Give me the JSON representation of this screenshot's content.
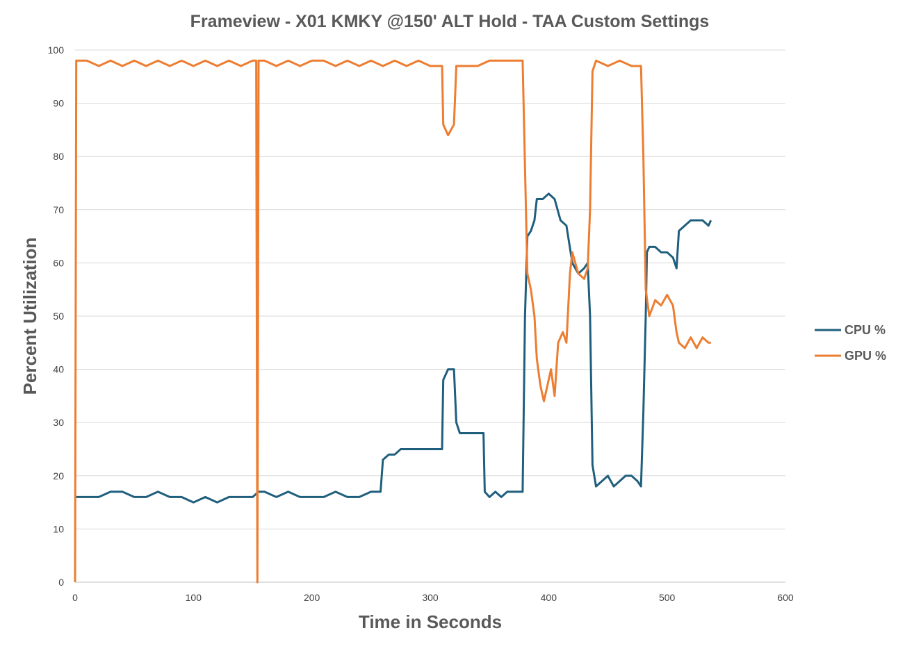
{
  "chart_data": {
    "type": "line",
    "title": "Frameview - X01 KMKY @150' ALT Hold - TAA Custom Settings",
    "xlabel": "Time in Seconds",
    "ylabel": "Percent Utilization",
    "xlim": [
      0,
      600
    ],
    "ylim": [
      0,
      100
    ],
    "x_ticks": [
      "0",
      "100",
      "200",
      "300",
      "400",
      "500",
      "600"
    ],
    "y_ticks": [
      "0",
      "10",
      "20",
      "30",
      "40",
      "50",
      "60",
      "70",
      "80",
      "90",
      "100"
    ],
    "grid": true,
    "legend_position": "right",
    "series": [
      {
        "name": "CPU %",
        "color": "#1f5f7d",
        "points": [
          [
            0,
            16
          ],
          [
            10,
            16
          ],
          [
            20,
            16
          ],
          [
            30,
            17
          ],
          [
            40,
            17
          ],
          [
            50,
            16
          ],
          [
            60,
            16
          ],
          [
            70,
            17
          ],
          [
            80,
            16
          ],
          [
            90,
            16
          ],
          [
            100,
            15
          ],
          [
            110,
            16
          ],
          [
            120,
            15
          ],
          [
            130,
            16
          ],
          [
            140,
            16
          ],
          [
            150,
            16
          ],
          [
            155,
            17
          ],
          [
            160,
            17
          ],
          [
            170,
            16
          ],
          [
            180,
            17
          ],
          [
            190,
            16
          ],
          [
            200,
            16
          ],
          [
            210,
            16
          ],
          [
            220,
            17
          ],
          [
            230,
            16
          ],
          [
            240,
            16
          ],
          [
            250,
            17
          ],
          [
            258,
            17
          ],
          [
            260,
            23
          ],
          [
            265,
            24
          ],
          [
            270,
            24
          ],
          [
            275,
            25
          ],
          [
            280,
            25
          ],
          [
            290,
            25
          ],
          [
            300,
            25
          ],
          [
            310,
            25
          ],
          [
            311,
            38
          ],
          [
            315,
            40
          ],
          [
            320,
            40
          ],
          [
            322,
            30
          ],
          [
            325,
            28
          ],
          [
            330,
            28
          ],
          [
            335,
            28
          ],
          [
            340,
            28
          ],
          [
            345,
            28
          ],
          [
            346,
            17
          ],
          [
            350,
            16
          ],
          [
            355,
            17
          ],
          [
            360,
            16
          ],
          [
            365,
            17
          ],
          [
            370,
            17
          ],
          [
            375,
            17
          ],
          [
            378,
            17
          ],
          [
            380,
            50
          ],
          [
            382,
            65
          ],
          [
            385,
            66
          ],
          [
            388,
            68
          ],
          [
            390,
            72
          ],
          [
            395,
            72
          ],
          [
            400,
            73
          ],
          [
            405,
            72
          ],
          [
            410,
            68
          ],
          [
            415,
            67
          ],
          [
            420,
            60
          ],
          [
            425,
            58
          ],
          [
            430,
            59
          ],
          [
            433,
            60
          ],
          [
            435,
            50
          ],
          [
            437,
            22
          ],
          [
            440,
            18
          ],
          [
            445,
            19
          ],
          [
            450,
            20
          ],
          [
            455,
            18
          ],
          [
            460,
            19
          ],
          [
            465,
            20
          ],
          [
            470,
            20
          ],
          [
            475,
            19
          ],
          [
            478,
            18
          ],
          [
            480,
            32
          ],
          [
            482,
            50
          ],
          [
            483,
            62
          ],
          [
            485,
            63
          ],
          [
            490,
            63
          ],
          [
            495,
            62
          ],
          [
            500,
            62
          ],
          [
            505,
            61
          ],
          [
            508,
            59
          ],
          [
            510,
            66
          ],
          [
            515,
            67
          ],
          [
            520,
            68
          ],
          [
            525,
            68
          ],
          [
            530,
            68
          ],
          [
            535,
            67
          ],
          [
            537,
            68
          ]
        ]
      },
      {
        "name": "GPU %",
        "color": "#ed7d31",
        "points": [
          [
            0,
            0
          ],
          [
            1,
            98
          ],
          [
            10,
            98
          ],
          [
            20,
            97
          ],
          [
            30,
            98
          ],
          [
            40,
            97
          ],
          [
            50,
            98
          ],
          [
            60,
            97
          ],
          [
            70,
            98
          ],
          [
            80,
            97
          ],
          [
            90,
            98
          ],
          [
            100,
            97
          ],
          [
            110,
            98
          ],
          [
            120,
            97
          ],
          [
            130,
            98
          ],
          [
            140,
            97
          ],
          [
            150,
            98
          ],
          [
            153,
            98
          ],
          [
            154,
            0
          ],
          [
            155,
            98
          ],
          [
            160,
            98
          ],
          [
            170,
            97
          ],
          [
            180,
            98
          ],
          [
            190,
            97
          ],
          [
            200,
            98
          ],
          [
            210,
            98
          ],
          [
            220,
            97
          ],
          [
            230,
            98
          ],
          [
            240,
            97
          ],
          [
            250,
            98
          ],
          [
            260,
            97
          ],
          [
            270,
            98
          ],
          [
            280,
            97
          ],
          [
            290,
            98
          ],
          [
            300,
            97
          ],
          [
            310,
            97
          ],
          [
            311,
            86
          ],
          [
            315,
            84
          ],
          [
            320,
            86
          ],
          [
            322,
            97
          ],
          [
            330,
            97
          ],
          [
            340,
            97
          ],
          [
            350,
            98
          ],
          [
            360,
            98
          ],
          [
            370,
            98
          ],
          [
            378,
            98
          ],
          [
            380,
            78
          ],
          [
            382,
            58
          ],
          [
            385,
            55
          ],
          [
            388,
            50
          ],
          [
            390,
            42
          ],
          [
            393,
            37
          ],
          [
            396,
            34
          ],
          [
            400,
            38
          ],
          [
            402,
            40
          ],
          [
            405,
            35
          ],
          [
            408,
            45
          ],
          [
            412,
            47
          ],
          [
            415,
            45
          ],
          [
            418,
            58
          ],
          [
            420,
            62
          ],
          [
            425,
            58
          ],
          [
            430,
            57
          ],
          [
            433,
            59
          ],
          [
            435,
            70
          ],
          [
            437,
            96
          ],
          [
            440,
            98
          ],
          [
            450,
            97
          ],
          [
            460,
            98
          ],
          [
            470,
            97
          ],
          [
            478,
            97
          ],
          [
            480,
            80
          ],
          [
            482,
            55
          ],
          [
            485,
            50
          ],
          [
            490,
            53
          ],
          [
            495,
            52
          ],
          [
            500,
            54
          ],
          [
            505,
            52
          ],
          [
            508,
            47
          ],
          [
            510,
            45
          ],
          [
            515,
            44
          ],
          [
            520,
            46
          ],
          [
            525,
            44
          ],
          [
            530,
            46
          ],
          [
            535,
            45
          ],
          [
            537,
            45
          ]
        ]
      }
    ]
  }
}
